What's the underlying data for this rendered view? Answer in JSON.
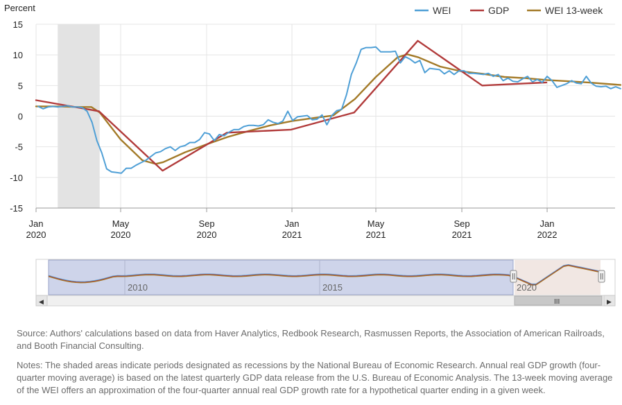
{
  "chart_data": {
    "type": "line",
    "ylabel": "Percent",
    "ylim": [
      -15,
      15
    ],
    "y_ticks": [
      "15",
      "10",
      "5",
      "0",
      "-5",
      "-10",
      "-15"
    ],
    "x_ticks": [
      {
        "month": "Jan",
        "year": "2020",
        "date": "2020-01-01"
      },
      {
        "month": "May",
        "year": "2020",
        "date": "2020-05-01"
      },
      {
        "month": "Sep",
        "year": "2020",
        "date": "2020-09-01"
      },
      {
        "month": "Jan",
        "year": "2021",
        "date": "2021-01-01"
      },
      {
        "month": "May",
        "year": "2021",
        "date": "2021-05-01"
      },
      {
        "month": "Sep",
        "year": "2021",
        "date": "2021-09-01"
      },
      {
        "month": "Jan",
        "year": "2022",
        "date": "2022-01-01"
      }
    ],
    "x_range": [
      "2020-01-01",
      "2022-03-26"
    ],
    "grid": true,
    "legend_position": "top-right",
    "recession_band": [
      "2020-02-01",
      "2020-04-01"
    ],
    "series": [
      {
        "name": "WEI",
        "color": "#4e9fd6",
        "points": [
          [
            "2020-01-04",
            1.6
          ],
          [
            "2020-01-11",
            1.2
          ],
          [
            "2020-01-18",
            1.5
          ],
          [
            "2020-01-25",
            1.6
          ],
          [
            "2020-02-01",
            1.5
          ],
          [
            "2020-02-08",
            1.6
          ],
          [
            "2020-02-15",
            1.7
          ],
          [
            "2020-02-22",
            1.5
          ],
          [
            "2020-02-29",
            1.5
          ],
          [
            "2020-03-07",
            1.4
          ],
          [
            "2020-03-14",
            0.8
          ],
          [
            "2020-03-21",
            -1.0
          ],
          [
            "2020-03-28",
            -4.0
          ],
          [
            "2020-04-04",
            -6.0
          ],
          [
            "2020-04-11",
            -8.6
          ],
          [
            "2020-04-18",
            -9.1
          ],
          [
            "2020-04-25",
            -9.2
          ],
          [
            "2020-05-02",
            -9.3
          ],
          [
            "2020-05-09",
            -8.5
          ],
          [
            "2020-05-16",
            -8.5
          ],
          [
            "2020-05-23",
            -8.0
          ],
          [
            "2020-05-30",
            -7.6
          ],
          [
            "2020-06-06",
            -7.2
          ],
          [
            "2020-06-13",
            -6.6
          ],
          [
            "2020-06-20",
            -6.0
          ],
          [
            "2020-06-27",
            -5.8
          ],
          [
            "2020-07-04",
            -5.3
          ],
          [
            "2020-07-11",
            -5.0
          ],
          [
            "2020-07-18",
            -5.6
          ],
          [
            "2020-07-25",
            -5.0
          ],
          [
            "2020-08-01",
            -4.8
          ],
          [
            "2020-08-08",
            -4.3
          ],
          [
            "2020-08-15",
            -4.3
          ],
          [
            "2020-08-22",
            -3.8
          ],
          [
            "2020-08-29",
            -2.7
          ],
          [
            "2020-09-05",
            -2.9
          ],
          [
            "2020-09-12",
            -4.0
          ],
          [
            "2020-09-19",
            -3.0
          ],
          [
            "2020-09-26",
            -3.2
          ],
          [
            "2020-10-03",
            -2.6
          ],
          [
            "2020-10-10",
            -2.2
          ],
          [
            "2020-10-17",
            -2.2
          ],
          [
            "2020-10-24",
            -1.7
          ],
          [
            "2020-10-31",
            -1.5
          ],
          [
            "2020-11-07",
            -1.5
          ],
          [
            "2020-11-14",
            -1.6
          ],
          [
            "2020-11-21",
            -1.4
          ],
          [
            "2020-11-28",
            -0.6
          ],
          [
            "2020-12-05",
            -1.0
          ],
          [
            "2020-12-12",
            -1.2
          ],
          [
            "2020-12-19",
            -0.8
          ],
          [
            "2020-12-26",
            0.8
          ],
          [
            "2021-01-02",
            -0.7
          ],
          [
            "2021-01-09",
            -0.1
          ],
          [
            "2021-01-16",
            0.0
          ],
          [
            "2021-01-23",
            0.1
          ],
          [
            "2021-01-30",
            -0.6
          ],
          [
            "2021-02-06",
            -0.5
          ],
          [
            "2021-02-13",
            0.2
          ],
          [
            "2021-02-20",
            -1.4
          ],
          [
            "2021-02-27",
            0.1
          ],
          [
            "2021-03-06",
            0.9
          ],
          [
            "2021-03-13",
            1.1
          ],
          [
            "2021-03-20",
            3.5
          ],
          [
            "2021-03-27",
            6.8
          ],
          [
            "2021-04-03",
            8.7
          ],
          [
            "2021-04-10",
            10.9
          ],
          [
            "2021-04-17",
            11.2
          ],
          [
            "2021-04-24",
            11.2
          ],
          [
            "2021-05-01",
            11.3
          ],
          [
            "2021-05-08",
            10.5
          ],
          [
            "2021-05-15",
            10.5
          ],
          [
            "2021-05-22",
            10.5
          ],
          [
            "2021-05-29",
            10.6
          ],
          [
            "2021-06-05",
            8.7
          ],
          [
            "2021-06-12",
            9.7
          ],
          [
            "2021-06-19",
            9.3
          ],
          [
            "2021-06-26",
            8.7
          ],
          [
            "2021-07-03",
            9.1
          ],
          [
            "2021-07-10",
            7.1
          ],
          [
            "2021-07-17",
            7.8
          ],
          [
            "2021-07-24",
            7.7
          ],
          [
            "2021-07-31",
            7.6
          ],
          [
            "2021-08-07",
            6.9
          ],
          [
            "2021-08-14",
            7.4
          ],
          [
            "2021-08-21",
            6.8
          ],
          [
            "2021-08-28",
            7.4
          ],
          [
            "2021-09-04",
            7.4
          ],
          [
            "2021-09-11",
            7.0
          ],
          [
            "2021-09-18",
            7.0
          ],
          [
            "2021-09-25",
            6.9
          ],
          [
            "2021-10-02",
            6.8
          ],
          [
            "2021-10-09",
            7.0
          ],
          [
            "2021-10-16",
            6.5
          ],
          [
            "2021-10-23",
            6.8
          ],
          [
            "2021-10-30",
            5.8
          ],
          [
            "2021-11-06",
            6.2
          ],
          [
            "2021-11-13",
            5.7
          ],
          [
            "2021-11-20",
            5.6
          ],
          [
            "2021-11-27",
            6.1
          ],
          [
            "2021-12-04",
            6.5
          ],
          [
            "2021-12-11",
            5.6
          ],
          [
            "2021-12-18",
            6.0
          ],
          [
            "2021-12-25",
            5.5
          ],
          [
            "2022-01-01",
            6.5
          ],
          [
            "2022-01-08",
            5.8
          ],
          [
            "2022-01-15",
            4.7
          ],
          [
            "2022-01-22",
            5.0
          ],
          [
            "2022-01-29",
            5.3
          ],
          [
            "2022-02-05",
            5.8
          ],
          [
            "2022-02-12",
            5.4
          ],
          [
            "2022-02-19",
            5.3
          ],
          [
            "2022-02-26",
            6.5
          ],
          [
            "2022-03-05",
            5.4
          ],
          [
            "2022-03-12",
            4.9
          ],
          [
            "2022-03-19",
            4.8
          ],
          [
            "2022-03-26",
            4.9
          ],
          [
            "2022-04-02",
            4.5
          ],
          [
            "2022-04-09",
            4.8
          ],
          [
            "2022-04-16",
            4.5
          ]
        ]
      },
      {
        "name": "GDP",
        "color": "#b13a3a",
        "points": [
          [
            "2020-01-01",
            2.6
          ],
          [
            "2020-03-31",
            0.8
          ],
          [
            "2020-06-30",
            -8.9
          ],
          [
            "2020-09-30",
            -2.7
          ],
          [
            "2020-12-31",
            -2.2
          ],
          [
            "2021-03-31",
            0.6
          ],
          [
            "2021-06-30",
            12.3
          ],
          [
            "2021-09-30",
            5.0
          ],
          [
            "2021-12-31",
            5.5
          ]
        ]
      },
      {
        "name": "WEI 13-week",
        "color": "#a37a28",
        "points": [
          [
            "2020-01-01",
            1.6
          ],
          [
            "2020-02-01",
            1.6
          ],
          [
            "2020-03-01",
            1.5
          ],
          [
            "2020-03-20",
            1.5
          ],
          [
            "2020-04-01",
            0.6
          ],
          [
            "2020-05-01",
            -3.8
          ],
          [
            "2020-06-01",
            -7.2
          ],
          [
            "2020-06-20",
            -7.8
          ],
          [
            "2020-07-01",
            -7.5
          ],
          [
            "2020-08-01",
            -5.9
          ],
          [
            "2020-09-01",
            -4.6
          ],
          [
            "2020-10-01",
            -3.4
          ],
          [
            "2020-11-01",
            -2.4
          ],
          [
            "2020-12-01",
            -1.5
          ],
          [
            "2021-01-01",
            -0.8
          ],
          [
            "2021-02-01",
            -0.3
          ],
          [
            "2021-03-01",
            0.1
          ],
          [
            "2021-04-01",
            2.8
          ],
          [
            "2021-05-01",
            6.4
          ],
          [
            "2021-06-01",
            9.6
          ],
          [
            "2021-06-15",
            10.1
          ],
          [
            "2021-07-01",
            9.6
          ],
          [
            "2021-08-01",
            8.1
          ],
          [
            "2021-09-01",
            7.3
          ],
          [
            "2021-10-01",
            6.9
          ],
          [
            "2021-11-01",
            6.4
          ],
          [
            "2021-12-01",
            6.2
          ],
          [
            "2022-01-01",
            5.9
          ],
          [
            "2022-02-01",
            5.7
          ],
          [
            "2022-03-01",
            5.5
          ],
          [
            "2022-04-16",
            5.1
          ]
        ]
      }
    ]
  },
  "navigator": {
    "labels": [
      "2010",
      "2015",
      "2020"
    ],
    "scroll_grip": "III",
    "left_arrow": "◀",
    "right_arrow": "▶"
  },
  "notes": {
    "source": "Source: Authors' calculations based on data from Haver Analytics, Redbook Research, Rasmussen Reports, the Association of American Railroads, and Booth Financial Consulting.",
    "notes": "Notes: The shaded areas indicate periods designated as recessions by the National Bureau of Economic Research. Annual real GDP growth (four-quarter moving average) is based on the latest quarterly GDP data release from the U.S. Bureau of Economic Analysis. The 13-week moving average of the WEI offers an approximation of the four-quarter annual real GDP growth rate for a hypothetical quarter ending in a given week."
  }
}
